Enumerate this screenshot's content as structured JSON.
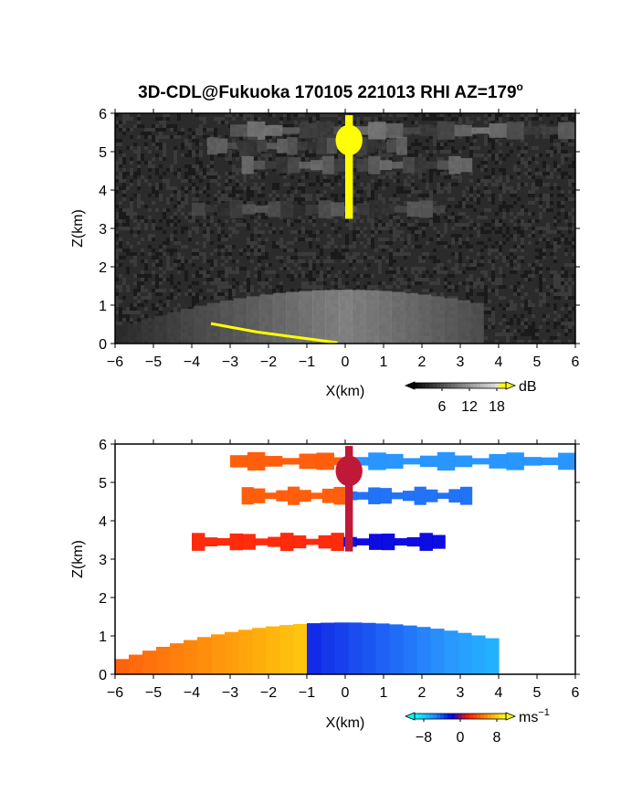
{
  "chart_data": {
    "title": "3D-CDL@Fukuoka 170105 221013 RHI AZ=179",
    "title_superscript": "o",
    "colors": {
      "reflectivity_min": "#0a0a0a",
      "reflectivity_max": "#f2f2f2",
      "reflectivity_saturated": "#ffff00",
      "velocity_stops": [
        "#00ffff",
        "#1e90ff",
        "#0000e0",
        "#ff2000",
        "#ff8c00",
        "#ffff00"
      ]
    },
    "panels": [
      {
        "type": "heatmap",
        "variable": "reflectivity",
        "xlabel": "X(km)",
        "ylabel": "Z(km)",
        "xlim": [
          -6,
          6
        ],
        "ylim": [
          0,
          6
        ],
        "xticks": [
          "−6",
          "−5",
          "−4",
          "−3",
          "−2",
          "−1",
          "0",
          "1",
          "2",
          "3",
          "4",
          "5",
          "6"
        ],
        "yticks": [
          "0",
          "1",
          "2",
          "3",
          "4",
          "5",
          "6"
        ],
        "colorbar": {
          "unit": "dB",
          "ticks": [
            "6",
            "12",
            "18"
          ],
          "range": [
            0,
            20
          ]
        },
        "layers": [
          {
            "z": 5.55,
            "x": [
              -3.0,
              6.0
            ],
            "value": 11
          },
          {
            "z": 5.15,
            "x": [
              -3.6,
              1.6
            ],
            "value": 9
          },
          {
            "z": 4.65,
            "x": [
              -2.7,
              3.3
            ],
            "value": 10
          },
          {
            "z": 3.5,
            "x": [
              -4.0,
              2.6
            ],
            "value": 8
          }
        ],
        "column": {
          "x": 0.1,
          "z_range": [
            3.25,
            5.95
          ],
          "value": 20
        },
        "near_surface": {
          "z_top": 1.4,
          "x": [
            -6.0,
            3.6
          ],
          "value": 12
        },
        "ground_clutter_edge": {
          "x": [
            -3.5,
            -0.2
          ],
          "value": 20
        }
      },
      {
        "type": "heatmap",
        "variable": "doppler_velocity",
        "xlabel": "X(km)",
        "ylabel": "Z(km)",
        "xlim": [
          -6,
          6
        ],
        "ylim": [
          0,
          6
        ],
        "xticks": [
          "−6",
          "−5",
          "−4",
          "−3",
          "−2",
          "−1",
          "0",
          "1",
          "2",
          "3",
          "4",
          "5",
          "6"
        ],
        "yticks": [
          "0",
          "1",
          "2",
          "3",
          "4",
          "5",
          "6"
        ],
        "colorbar": {
          "unit": "ms",
          "unit_superscript": "−1",
          "ticks": [
            "−8",
            "0",
            "8"
          ],
          "range": [
            -10,
            10
          ]
        },
        "layers": [
          {
            "z": 5.55,
            "x": [
              -3.0,
              6.0
            ],
            "v_left": 4,
            "v_right": -6
          },
          {
            "z": 4.65,
            "x": [
              -2.7,
              3.3
            ],
            "v_left": 4,
            "v_right": -5
          },
          {
            "z": 3.45,
            "x": [
              -4.0,
              2.6
            ],
            "v_left": 2,
            "v_right": -2
          }
        ],
        "column": {
          "x": 0.1,
          "z_range": [
            3.2,
            5.95
          ],
          "v": 1
        },
        "near_surface": {
          "z_top": 1.35,
          "x": [
            -6.0,
            4.0
          ],
          "v_left": 8,
          "v_right": -9
        }
      }
    ]
  }
}
